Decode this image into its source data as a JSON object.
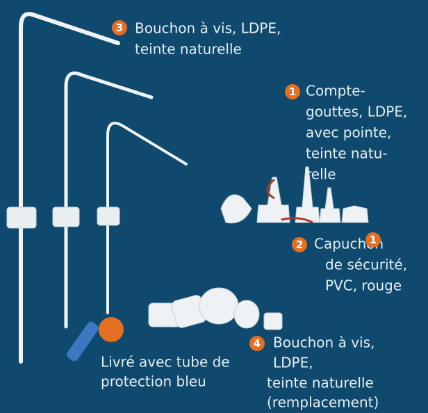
{
  "callouts": [
    {
      "number": "3",
      "lines": [
        "Bouchon à vis, LDPE,",
        "teinte naturelle"
      ]
    },
    {
      "number": "1",
      "lines": [
        "Compte-",
        "gouttes, LDPE,",
        "avec pointe,",
        "teinte natu-",
        "relle"
      ]
    },
    {
      "number": "2",
      "lines": [
        "Capuchon",
        "de sécurité,",
        "PVC, rouge"
      ]
    },
    {
      "number": "4",
      "lines": [
        "Bouchon à vis,",
        "LDPE,",
        "teinte naturelle",
        "(remplacement)"
      ]
    }
  ],
  "extra_badge": "1",
  "caption": [
    "Livré avec tube de",
    "protection bleu"
  ]
}
